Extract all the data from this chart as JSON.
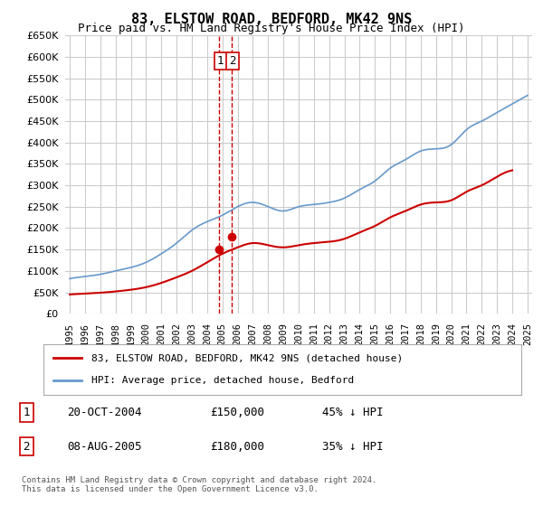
{
  "title": "83, ELSTOW ROAD, BEDFORD, MK42 9NS",
  "subtitle": "Price paid vs. HM Land Registry's House Price Index (HPI)",
  "ylabel": "",
  "ylim": [
    0,
    650000
  ],
  "yticks": [
    0,
    50000,
    100000,
    150000,
    200000,
    250000,
    300000,
    350000,
    400000,
    450000,
    500000,
    550000,
    600000,
    650000
  ],
  "hpi_color": "#6699cc",
  "price_color": "#cc0000",
  "transaction_color": "#cc0000",
  "vline_color": "#cc0000",
  "grid_color": "#cccccc",
  "bg_color": "#ffffff",
  "legend_label_price": "83, ELSTOW ROAD, BEDFORD, MK42 9NS (detached house)",
  "legend_label_hpi": "HPI: Average price, detached house, Bedford",
  "transactions": [
    {
      "date": 2004.8,
      "price": 150000,
      "label": "1"
    },
    {
      "date": 2005.6,
      "price": 180000,
      "label": "2"
    }
  ],
  "table_rows": [
    {
      "num": "1",
      "date": "20-OCT-2004",
      "price": "£150,000",
      "pct": "45% ↓ HPI"
    },
    {
      "num": "2",
      "date": "08-AUG-2005",
      "price": "£180,000",
      "pct": "35% ↓ HPI"
    }
  ],
  "footer": "Contains HM Land Registry data © Crown copyright and database right 2024.\nThis data is licensed under the Open Government Licence v3.0.",
  "hpi_data_years": [
    1995,
    1996,
    1997,
    1998,
    1999,
    2000,
    2001,
    2002,
    2003,
    2004,
    2005,
    2006,
    2007,
    2008,
    2009,
    2010,
    2011,
    2012,
    2013,
    2014,
    2015,
    2016,
    2017,
    2018,
    2019,
    2020,
    2021,
    2022,
    2023,
    2024,
    2025
  ],
  "hpi_data_values": [
    82000,
    87000,
    92000,
    100000,
    108000,
    120000,
    140000,
    165000,
    195000,
    215000,
    230000,
    250000,
    260000,
    250000,
    240000,
    250000,
    255000,
    260000,
    270000,
    290000,
    310000,
    340000,
    360000,
    380000,
    385000,
    395000,
    430000,
    450000,
    470000,
    490000,
    510000
  ],
  "price_data_years": [
    1995,
    1996,
    1997,
    1998,
    1999,
    2000,
    2001,
    2002,
    2003,
    2004,
    2005,
    2006,
    2007,
    2008,
    2009,
    2010,
    2011,
    2012,
    2013,
    2014,
    2015,
    2016,
    2017,
    2018,
    2019,
    2020,
    2021,
    2022,
    2023,
    2024
  ],
  "price_data_values": [
    45000,
    47000,
    49000,
    52000,
    56000,
    62000,
    72000,
    85000,
    100000,
    120000,
    140000,
    155000,
    165000,
    160000,
    155000,
    160000,
    165000,
    168000,
    175000,
    190000,
    205000,
    225000,
    240000,
    255000,
    260000,
    265000,
    285000,
    300000,
    320000,
    335000
  ]
}
